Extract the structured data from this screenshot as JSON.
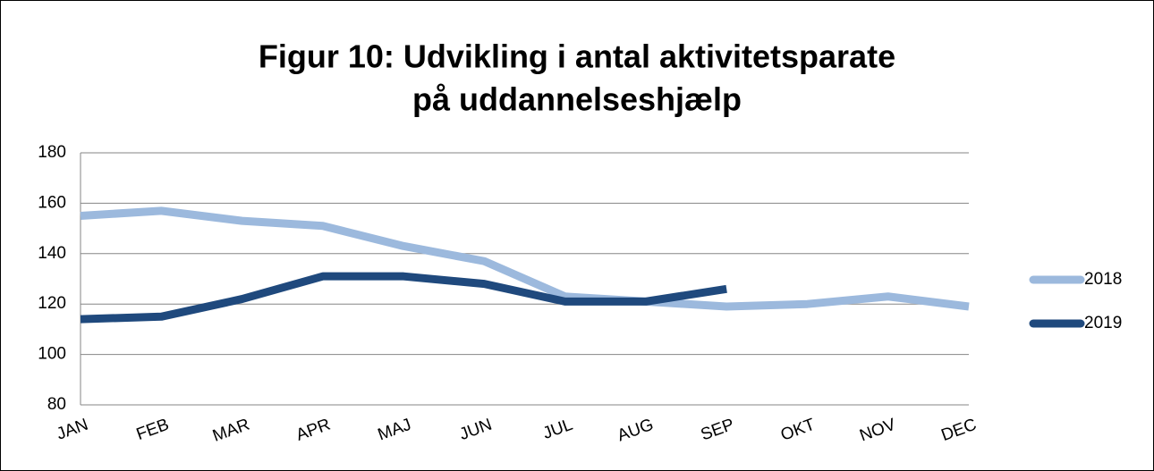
{
  "chart_data": {
    "type": "line",
    "title": [
      "Figur 10: Udvikling i antal aktivitetsparate",
      "på uddannelseshjælp"
    ],
    "categories": [
      "JAN",
      "FEB",
      "MAR",
      "APR",
      "MAJ",
      "JUN",
      "JUL",
      "AUG",
      "SEP",
      "OKT",
      "NOV",
      "DEC"
    ],
    "series": [
      {
        "name": "2018",
        "color": "#9cb9dd",
        "values": [
          155,
          157,
          153,
          151,
          143,
          137,
          123,
          121,
          119,
          120,
          123,
          119
        ]
      },
      {
        "name": "2019",
        "color": "#1f497d",
        "values": [
          114,
          115,
          122,
          131,
          131,
          128,
          121,
          121,
          126,
          null,
          null,
          null
        ]
      }
    ],
    "ylim": [
      80,
      180
    ],
    "yticks": [
      80,
      100,
      120,
      140,
      160,
      180
    ],
    "grid": true,
    "legend": "right"
  }
}
